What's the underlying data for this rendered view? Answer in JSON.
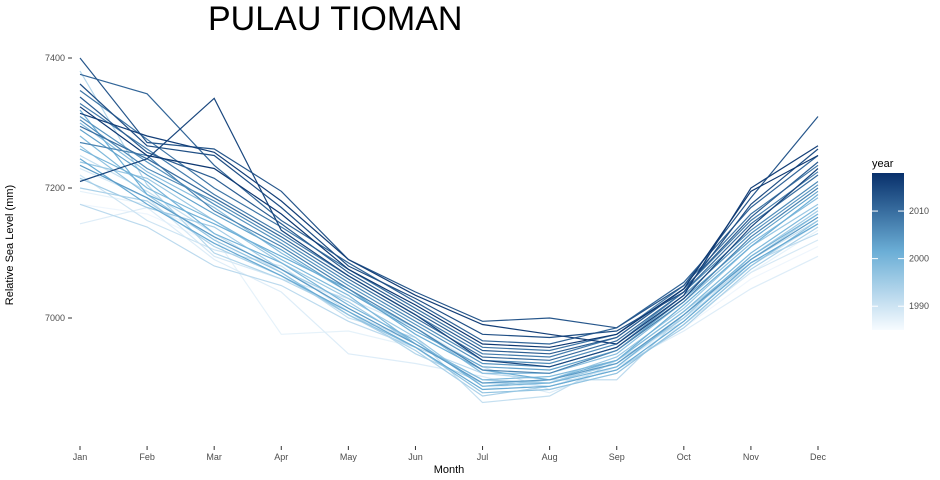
{
  "chart_data": {
    "type": "line",
    "title": "PULAU TIOMAN",
    "xlabel": "Month",
    "ylabel": "Relative Sea Level (mm)",
    "categories": [
      "Jan",
      "Feb",
      "Mar",
      "Apr",
      "May",
      "Jun",
      "Jul",
      "Aug",
      "Sep",
      "Oct",
      "Nov",
      "Dec"
    ],
    "ylim": [
      6870,
      7415
    ],
    "y_ticks": [
      7000,
      7200,
      7400
    ],
    "grid": false,
    "legend": {
      "title": "year",
      "position": "right",
      "type": "colorbar",
      "range": [
        1985,
        2018
      ],
      "ticks": [
        1990,
        2000,
        2010
      ],
      "color_low": "#F7FBFF",
      "color_high": "#08306B"
    },
    "series": [
      {
        "year": 1986,
        "values": [
          7175,
          7160,
          7115,
          7075,
          7020,
          6965,
          6900,
          6895,
          6920,
          6985,
          7060,
          7110
        ]
      },
      {
        "year": 1987,
        "values": [
          7195,
          7175,
          7125,
          6975,
          6980,
          6955,
          6890,
          6905,
          6930,
          6990,
          7070,
          7135
        ]
      },
      {
        "year": 1988,
        "values": [
          7145,
          7170,
          7090,
          7040,
          6945,
          6930,
          6910,
          6885,
          6925,
          6980,
          7045,
          7095
        ]
      },
      {
        "year": 1989,
        "values": [
          7230,
          7185,
          7095,
          7060,
          7030,
          6985,
          6925,
          6890,
          6915,
          6990,
          7070,
          7120
        ]
      },
      {
        "year": 1990,
        "values": [
          7220,
          7150,
          7105,
          7080,
          7010,
          6960,
          6905,
          6895,
          6925,
          7000,
          7080,
          7145
        ]
      },
      {
        "year": 1991,
        "values": [
          7250,
          7195,
          7130,
          7070,
          7000,
          6970,
          6870,
          6880,
          6935,
          6995,
          7090,
          7150
        ]
      },
      {
        "year": 1992,
        "values": [
          7175,
          7140,
          7080,
          7050,
          6995,
          6955,
          6915,
          6905,
          6905,
          7005,
          7085,
          7130
        ]
      },
      {
        "year": 1993,
        "values": [
          7380,
          7205,
          7100,
          7060,
          7010,
          6945,
          6900,
          6900,
          6935,
          7010,
          7090,
          7160
        ]
      },
      {
        "year": 1994,
        "values": [
          7200,
          7180,
          7110,
          7065,
          7005,
          6950,
          6880,
          6895,
          6920,
          6985,
          7075,
          7140
        ]
      },
      {
        "year": 1995,
        "values": [
          7215,
          7170,
          7140,
          7075,
          7025,
          6960,
          6905,
          6900,
          6930,
          7000,
          7095,
          7165
        ]
      },
      {
        "year": 1996,
        "values": [
          7240,
          7215,
          7150,
          7085,
          7030,
          6970,
          6895,
          6905,
          6940,
          7015,
          7110,
          7175
        ]
      },
      {
        "year": 1997,
        "values": [
          7265,
          7190,
          7120,
          7070,
          7005,
          6955,
          6885,
          6890,
          6915,
          6990,
          7080,
          7150
        ]
      },
      {
        "year": 1998,
        "values": [
          7300,
          7225,
          7170,
          7100,
          7040,
          6985,
          6915,
          6915,
          6945,
          7025,
          7115,
          7185
        ]
      },
      {
        "year": 1999,
        "values": [
          7280,
          7200,
          7150,
          7090,
          7035,
          6960,
          6905,
          6910,
          6935,
          7010,
          7100,
          7170
        ]
      },
      {
        "year": 2000,
        "values": [
          7260,
          7210,
          7130,
          7085,
          7020,
          6965,
          6895,
          6900,
          6925,
          7005,
          7095,
          7160
        ]
      },
      {
        "year": 2001,
        "values": [
          7320,
          7190,
          7145,
          7095,
          7045,
          6975,
          6920,
          6905,
          6935,
          7020,
          7110,
          7190
        ]
      },
      {
        "year": 2002,
        "values": [
          7245,
          7175,
          7115,
          7065,
          7010,
          6955,
          6890,
          6895,
          6920,
          6995,
          7085,
          7145
        ]
      },
      {
        "year": 2003,
        "values": [
          7290,
          7220,
          7160,
          7105,
          7040,
          6980,
          6925,
          6920,
          6950,
          7030,
          7120,
          7195
        ]
      },
      {
        "year": 2004,
        "values": [
          7235,
          7185,
          7125,
          7075,
          7015,
          6960,
          6900,
          6905,
          6930,
          7005,
          7090,
          7155
        ]
      },
      {
        "year": 2005,
        "values": [
          7310,
          7240,
          7175,
          7115,
          7050,
          6990,
          6930,
          6925,
          6955,
          7035,
          7130,
          7205
        ]
      },
      {
        "year": 2006,
        "values": [
          7305,
          7230,
          7180,
          7120,
          7055,
          6995,
          6935,
          6930,
          6960,
          7040,
          7135,
          7210
        ]
      },
      {
        "year": 2007,
        "values": [
          7270,
          7250,
          7165,
          7110,
          7045,
          6985,
          6920,
          6915,
          6950,
          7025,
          7125,
          7200
        ]
      },
      {
        "year": 2008,
        "values": [
          7330,
          7260,
          7190,
          7130,
          7065,
          7005,
          6945,
          6940,
          6970,
          7045,
          7150,
          7225
        ]
      },
      {
        "year": 2009,
        "values": [
          7350,
          7275,
          7200,
          7140,
          7075,
          7015,
          6955,
          6950,
          6975,
          7050,
          7160,
          7235
        ]
      },
      {
        "year": 2010,
        "values": [
          7295,
          7245,
          7185,
          7125,
          7060,
          7000,
          6940,
          6935,
          6965,
          7040,
          7145,
          7220
        ]
      },
      {
        "year": 2011,
        "values": [
          7375,
          7345,
          7235,
          7150,
          7085,
          7025,
          6965,
          6960,
          6985,
          7055,
          7170,
          7250
        ]
      },
      {
        "year": 2012,
        "values": [
          7340,
          7255,
          7215,
          7145,
          7070,
          7010,
          6950,
          6945,
          6970,
          7045,
          7155,
          7240
        ]
      },
      {
        "year": 2013,
        "values": [
          7400,
          7270,
          7260,
          7195,
          7090,
          7040,
          6995,
          7000,
          6985,
          7050,
          7185,
          7310
        ]
      },
      {
        "year": 2014,
        "values": [
          7360,
          7265,
          7250,
          7170,
          7080,
          7030,
          6975,
          6970,
          6980,
          7040,
          7175,
          7260
        ]
      },
      {
        "year": 2015,
        "values": [
          7210,
          7245,
          7338,
          7135,
          7065,
          7005,
          6935,
          6925,
          6955,
          7030,
          7140,
          7230
        ]
      },
      {
        "year": 2016,
        "values": [
          7315,
          7280,
          7255,
          7180,
          7090,
          7035,
          6990,
          6975,
          6960,
          7035,
          7200,
          7265
        ]
      },
      {
        "year": 2017,
        "values": [
          7325,
          7250,
          7230,
          7160,
          7075,
          7020,
          6960,
          6955,
          6975,
          7045,
          7195,
          7250
        ]
      }
    ]
  }
}
